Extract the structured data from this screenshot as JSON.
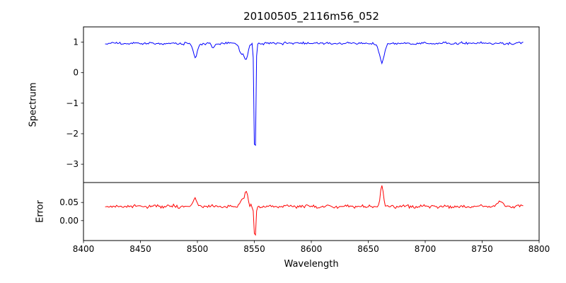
{
  "figure": {
    "title": "20100505_2116m56_052",
    "xlabel": "Wavelength",
    "background_color": "#ffffff",
    "spine_color": "#000000",
    "xlim": [
      8400,
      8800
    ],
    "xticks": [
      {
        "value": 8400,
        "label": "8400"
      },
      {
        "value": 8450,
        "label": "8450"
      },
      {
        "value": 8500,
        "label": "8500"
      },
      {
        "value": 8550,
        "label": "8550"
      },
      {
        "value": 8600,
        "label": "8600"
      },
      {
        "value": 8650,
        "label": "8650"
      },
      {
        "value": 8700,
        "label": "8700"
      },
      {
        "value": 8750,
        "label": "8750"
      },
      {
        "value": 8800,
        "label": "8800"
      }
    ]
  },
  "chart_data": [
    {
      "type": "line",
      "panel": "top",
      "ylabel": "Spectrum",
      "color": "#0000ff",
      "ylim": [
        -3.6,
        1.5
      ],
      "yticks": [
        {
          "value": 1,
          "label": "1"
        },
        {
          "value": 0,
          "label": "0"
        },
        {
          "value": -1,
          "label": "−1"
        },
        {
          "value": -2,
          "label": "−2"
        },
        {
          "value": -3,
          "label": "−3"
        }
      ],
      "series": {
        "x_start": 8419,
        "x_end": 8786,
        "step": 1,
        "baseline": 0.96,
        "noise_amplitude": 0.032,
        "seed": 20100505,
        "features": [
          {
            "center": 8498.0,
            "amp": -0.45,
            "width": 1.8
          },
          {
            "center": 8514.0,
            "amp": -0.16,
            "width": 1.2
          },
          {
            "center": 8538.0,
            "amp": -0.28,
            "width": 1.3
          },
          {
            "center": 8542.5,
            "amp": -0.55,
            "width": 2.0
          },
          {
            "center": 8550.5,
            "amp": -4.3,
            "width": 0.7
          },
          {
            "center": 8662.0,
            "amp": -0.62,
            "width": 2.2
          }
        ]
      }
    },
    {
      "type": "line",
      "panel": "bottom",
      "ylabel": "Error",
      "color": "#ff0000",
      "ylim": [
        -0.055,
        0.105
      ],
      "yticks": [
        {
          "value": 0.05,
          "label": "0.05"
        },
        {
          "value": 0.0,
          "label": "0.00"
        }
      ],
      "series": {
        "x_start": 8419,
        "x_end": 8786,
        "step": 1,
        "baseline": 0.039,
        "noise_amplitude": 0.0035,
        "seed": 2116,
        "features": [
          {
            "center": 8498.0,
            "amp": 0.022,
            "width": 1.5
          },
          {
            "center": 8540.0,
            "amp": 0.02,
            "width": 2.5
          },
          {
            "center": 8543.0,
            "amp": 0.036,
            "width": 1.2
          },
          {
            "center": 8550.5,
            "amp": -0.1,
            "width": 0.7
          },
          {
            "center": 8662.0,
            "amp": 0.055,
            "width": 1.3
          },
          {
            "center": 8766.0,
            "amp": 0.012,
            "width": 2.0
          }
        ]
      }
    }
  ]
}
